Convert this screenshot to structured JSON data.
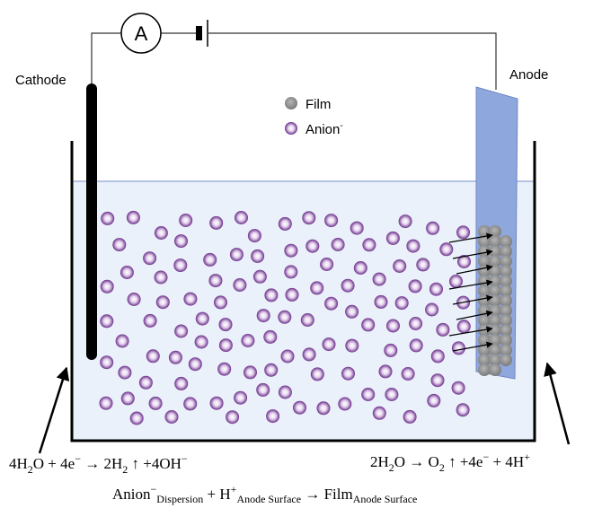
{
  "ammeter": "A",
  "labels": {
    "cathode": "Cathode",
    "anode": "Anode"
  },
  "legend": {
    "film": "Film",
    "anion": [
      "Anion",
      "-"
    ]
  },
  "equations": {
    "cathode": [
      "4H",
      "2",
      "O + 4e",
      "−",
      " → 2H",
      "2",
      " ↑ +4OH",
      "−"
    ],
    "anode": [
      "2H",
      "2",
      "O → O",
      "2",
      " ↑ +4e",
      "−",
      " + 4H",
      "+"
    ],
    "deposition": [
      "Anion",
      "−",
      "Dispersion",
      " + H",
      "+",
      "Anode Surface",
      " → Film",
      "Anode Surface"
    ]
  }
}
